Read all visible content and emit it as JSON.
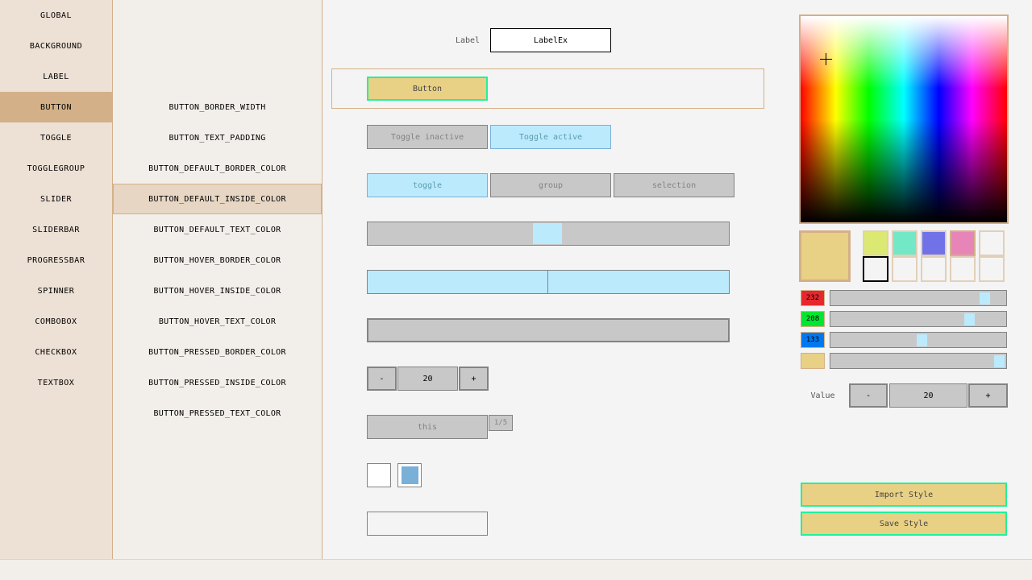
{
  "categories": [
    "GLOBAL",
    "BACKGROUND",
    "LABEL",
    "BUTTON",
    "TOGGLE",
    "TOGGLEGROUP",
    "SLIDER",
    "SLIDERBAR",
    "PROGRESSBAR",
    "SPINNER",
    "COMBOBOX",
    "CHECKBOX",
    "TEXTBOX"
  ],
  "selected_category": "BUTTON",
  "properties": [
    "BUTTON_BORDER_WIDTH",
    "BUTTON_TEXT_PADDING",
    "BUTTON_DEFAULT_BORDER_COLOR",
    "BUTTON_DEFAULT_INSIDE_COLOR",
    "BUTTON_DEFAULT_TEXT_COLOR",
    "BUTTON_HOVER_BORDER_COLOR",
    "BUTTON_HOVER_INSIDE_COLOR",
    "BUTTON_HOVER_TEXT_COLOR",
    "BUTTON_PRESSED_BORDER_COLOR",
    "BUTTON_PRESSED_INSIDE_COLOR",
    "BUTTON_PRESSED_TEXT_COLOR"
  ],
  "selected_property": "BUTTON_DEFAULT_INSIDE_COLOR",
  "preview": {
    "label": "Label",
    "label_ex": "LabelEx",
    "button": "Button",
    "toggle_inactive": "Toggle inactive",
    "toggle_active": "Toggle active",
    "toggle_group": [
      "toggle",
      "group",
      "selection"
    ],
    "toggle_group_active": 0,
    "slider_value": 0.5,
    "sliderbar_value": 0.5,
    "progress_value": 0,
    "spinner": {
      "minus": "-",
      "value": "20",
      "plus": "+"
    },
    "combobox": {
      "value": "this",
      "counter": "1/5"
    },
    "checkbox_unchecked": false,
    "checkbox_checked": true,
    "textbox_value": ""
  },
  "color_editor": {
    "current_color": "#e8d085",
    "swatches": [
      "#dbe872",
      "#72e8c6",
      "#7272e8",
      "#e885b8",
      "#f4f4f4",
      "#f4f4f4",
      "#f4f4f4",
      "#f4f4f4",
      "#f4f4f4",
      "#f4f4f4"
    ],
    "r": "232",
    "g": "208",
    "b": "133",
    "alpha": 1.0,
    "value_label": "Value",
    "spinner": {
      "minus": "-",
      "value": "20",
      "plus": "+"
    },
    "import_label": "Import Style",
    "save_label": "Save Style"
  }
}
